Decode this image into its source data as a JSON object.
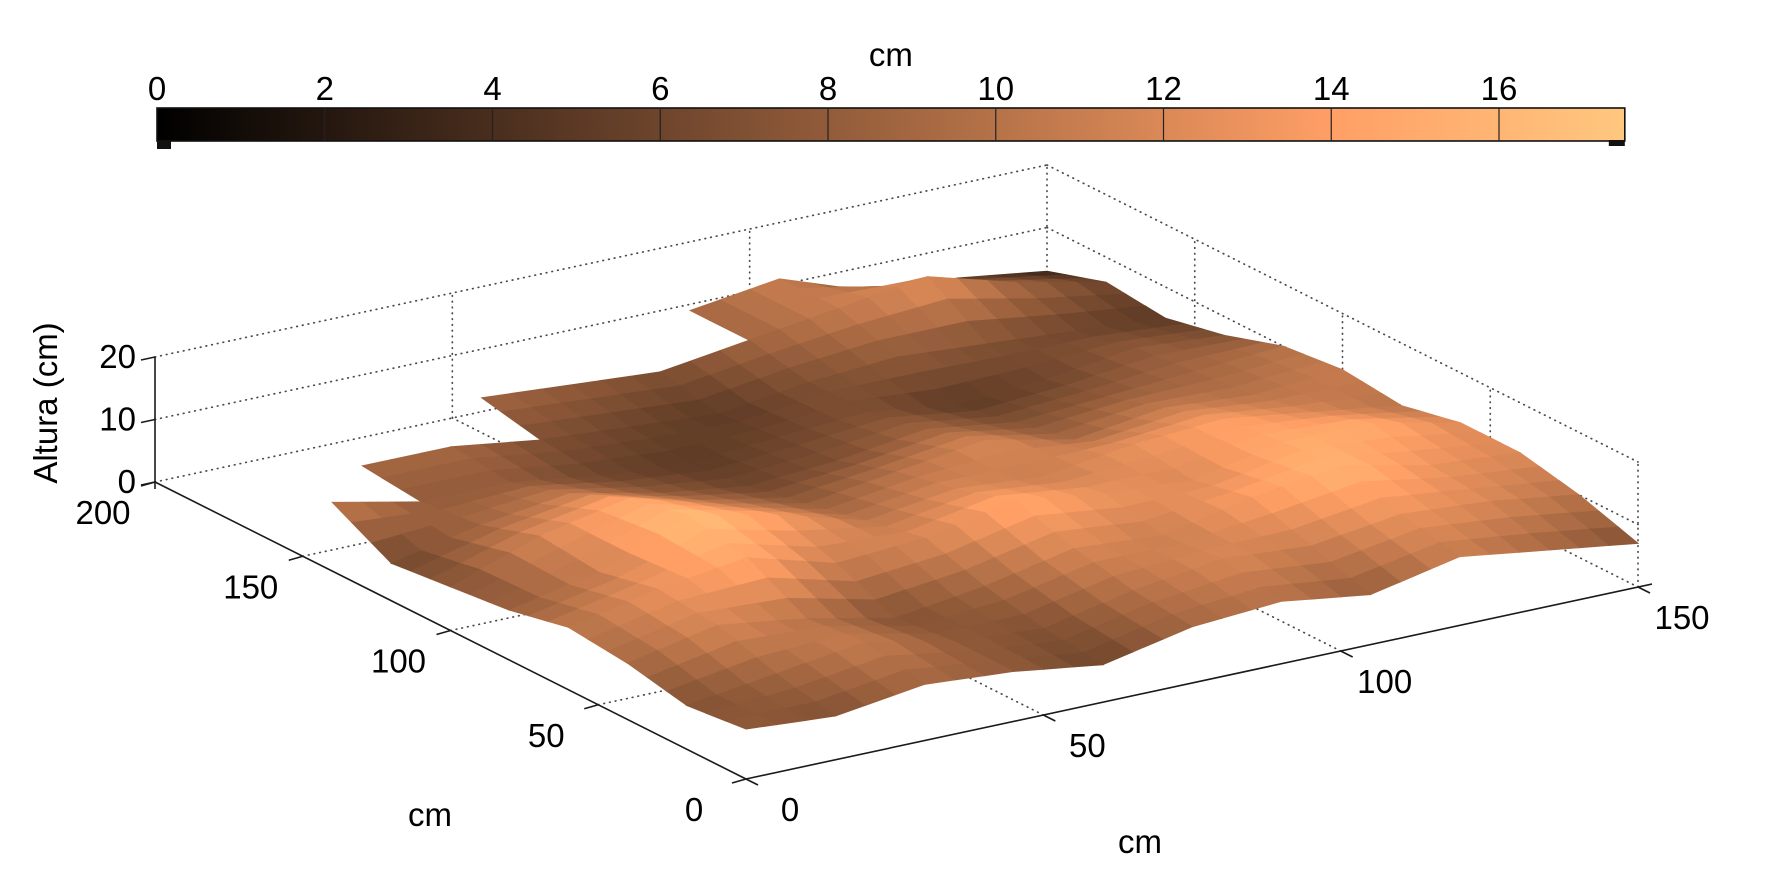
{
  "figure": {
    "background": "#ffffff"
  },
  "colorbar": {
    "title": "cm",
    "ticks": [
      0,
      2,
      4,
      6,
      8,
      10,
      12,
      14,
      16
    ],
    "min": 0,
    "max": 17.5,
    "colormap": "copper"
  },
  "chart_data": {
    "type": "surface",
    "title": "",
    "xlabel": "cm",
    "ylabel": "cm",
    "zlabel": "Altura (cm)",
    "colorbar_label": "cm",
    "colormap": "copper",
    "grid": "dotted",
    "xlim": [
      0,
      150
    ],
    "ylim": [
      0,
      200
    ],
    "zlim": [
      0,
      20
    ],
    "clim": [
      0,
      17.5
    ],
    "x_ticks": [
      0,
      50,
      100,
      150
    ],
    "y_ticks": [
      0,
      50,
      100,
      150,
      200
    ],
    "z_ticks": [
      0,
      10,
      20
    ],
    "x": [
      0,
      15,
      30,
      45,
      60,
      75,
      90,
      105,
      120,
      135,
      150
    ],
    "y": [
      0,
      20,
      40,
      60,
      80,
      100,
      120,
      140,
      160,
      180,
      200
    ],
    "heights_cm": [
      [
        8,
        7,
        9,
        8,
        6,
        9,
        10,
        8,
        11,
        9,
        7
      ],
      [
        7,
        9,
        11,
        8,
        7,
        10,
        12,
        11,
        13,
        12,
        10
      ],
      [
        9,
        12,
        10,
        7,
        9,
        12,
        11,
        14,
        16,
        13,
        12
      ],
      [
        10,
        13,
        15,
        11,
        12,
        15,
        13,
        12,
        15,
        15,
        12
      ],
      [
        8,
        11,
        17,
        14,
        10,
        12,
        11,
        13,
        14,
        12,
        10
      ],
      [
        7,
        12,
        15,
        11,
        8,
        10,
        12,
        9,
        11,
        10,
        11
      ],
      [
        6,
        9,
        11,
        8,
        6,
        7,
        9,
        7,
        8,
        9,
        10
      ],
      [
        11,
        8,
        8,
        6,
        5,
        6,
        7,
        5,
        6,
        8,
        7
      ],
      [
        null,
        9,
        9,
        7,
        6,
        5,
        7,
        8,
        7,
        6,
        5
      ],
      [
        null,
        null,
        null,
        9,
        8,
        7,
        9,
        11,
        13,
        9,
        6
      ],
      [
        null,
        null,
        null,
        null,
        null,
        null,
        9,
        11,
        6,
        5,
        3
      ]
    ]
  }
}
